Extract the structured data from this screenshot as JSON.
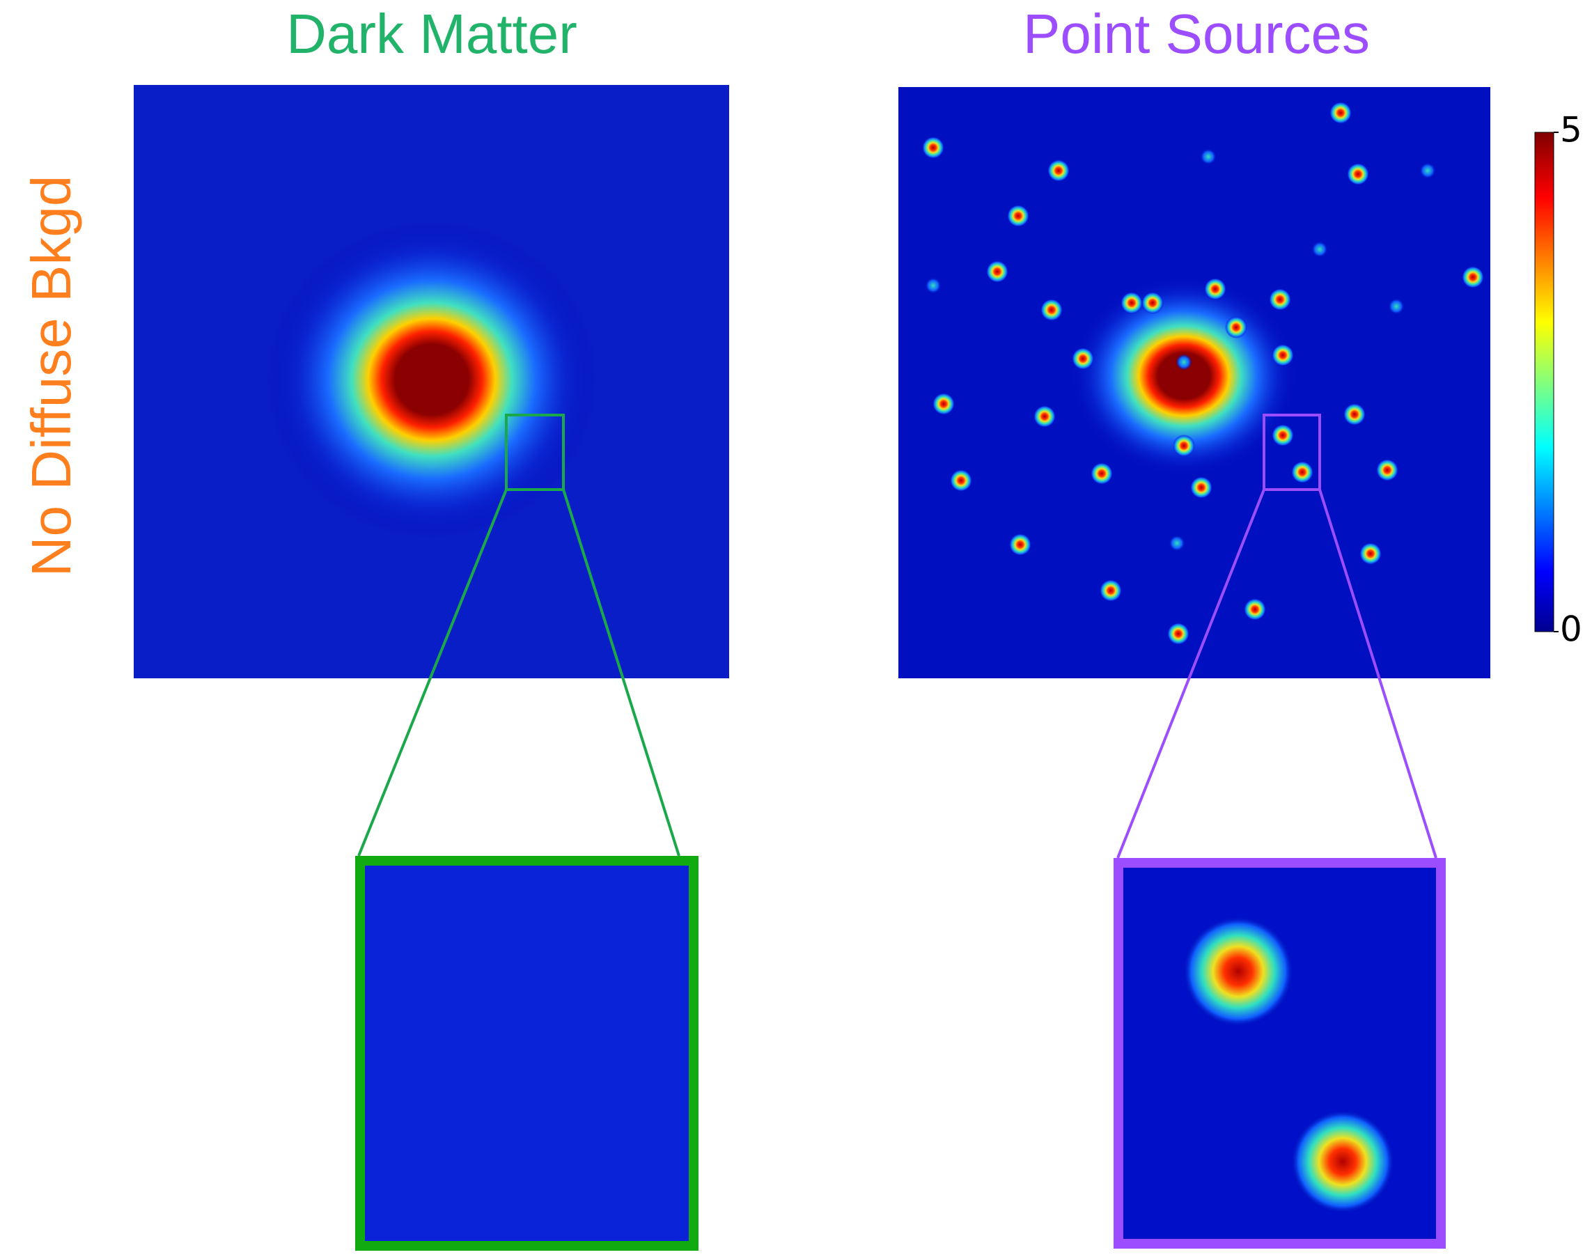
{
  "titles": [
    "Dark Matter",
    "Point Sources"
  ],
  "row_label": "No Diffuse Bkgd",
  "colorbar": {
    "lim": [
      0,
      5
    ],
    "ticks": [
      0,
      5
    ]
  }
}
